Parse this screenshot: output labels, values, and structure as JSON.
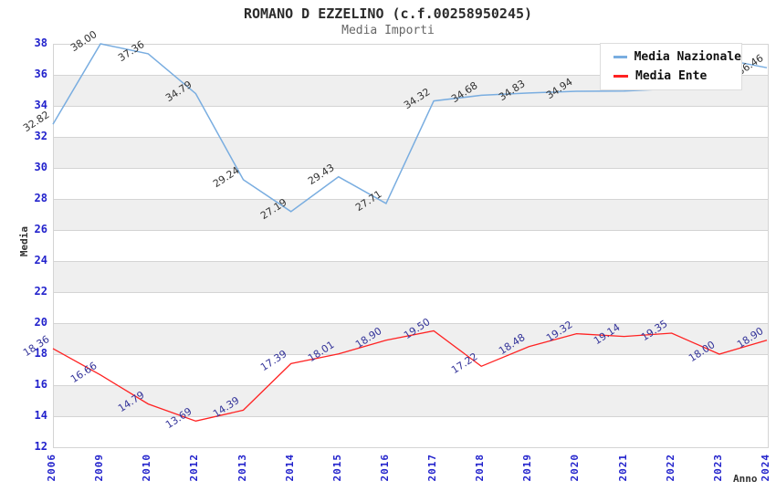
{
  "chart_data": {
    "type": "line",
    "title": "ROMANO D EZZELINO (c.f.00258950245)",
    "subtitle": "Media Importi",
    "xlabel": "Anno",
    "ylabel": "Media",
    "categories": [
      "2006",
      "2009",
      "2010",
      "2012",
      "2013",
      "2014",
      "2015",
      "2016",
      "2017",
      "2018",
      "2019",
      "2020",
      "2021",
      "2022",
      "2023",
      "2024"
    ],
    "series": [
      {
        "name": "Media Nazionale",
        "color": "#79ade0",
        "label_color": "#333333",
        "stroke_width": 1.5,
        "values": [
          32.82,
          38.0,
          37.36,
          34.79,
          29.24,
          27.19,
          29.43,
          27.71,
          34.32,
          34.68,
          34.83,
          34.94,
          34.95,
          35.1,
          37.05,
          36.46
        ],
        "hidden_label_indices": [
          12,
          13
        ]
      },
      {
        "name": "Media Ente",
        "color": "#ff2222",
        "label_color": "#333399",
        "stroke_width": 1.3,
        "values": [
          18.36,
          16.66,
          14.79,
          13.69,
          14.39,
          17.39,
          18.01,
          18.9,
          19.5,
          17.22,
          18.48,
          19.32,
          19.14,
          19.35,
          18.0,
          18.9
        ],
        "hidden_label_indices": []
      }
    ],
    "ylim": [
      12,
      38
    ],
    "ytick_step": 2,
    "grid": "horizontal gridlines with alternating white/gray bands",
    "legend_position": "top-right",
    "label_decimals": 2
  },
  "colors": {
    "tick_label": "#2222cc",
    "axis_title": "#333333",
    "band": "#efefef",
    "gridline": "#d4d4d4"
  }
}
